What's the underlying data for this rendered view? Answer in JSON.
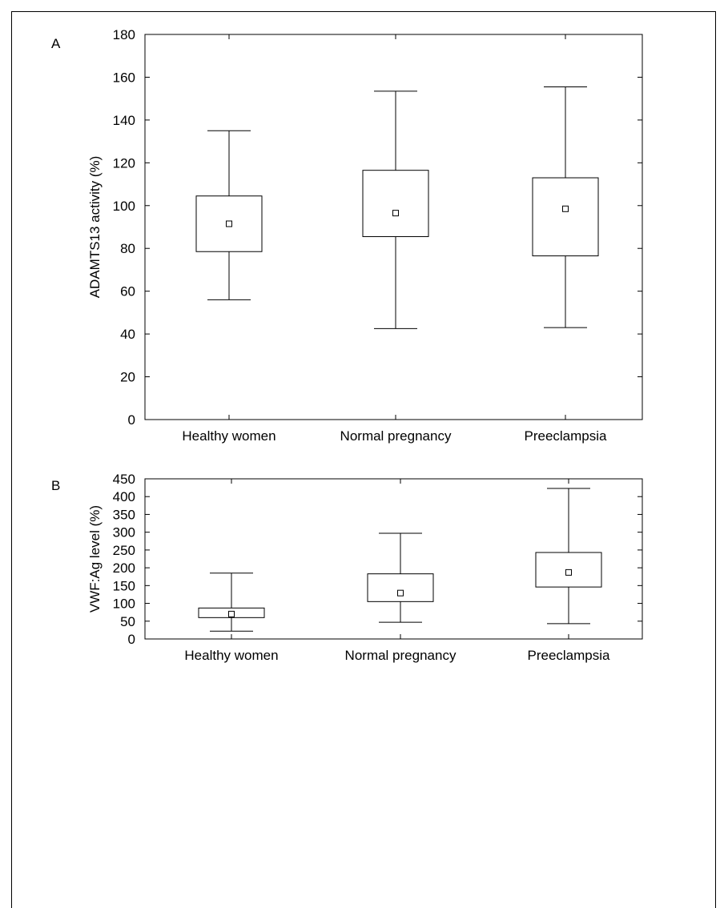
{
  "chart_data": [
    {
      "type": "box",
      "panel_label": "A",
      "ylabel": "ADAMTS13 activity (%)",
      "ylim": [
        0,
        180
      ],
      "yticks": [
        0,
        20,
        40,
        60,
        80,
        100,
        120,
        140,
        160,
        180
      ],
      "categories": [
        "Healthy women",
        "Normal pregnancy",
        "Preeclampsia"
      ],
      "boxes": [
        {
          "whisker_low": 56,
          "q1": 78.5,
          "median": 91.5,
          "q3": 104.5,
          "whisker_high": 135
        },
        {
          "whisker_low": 42.5,
          "q1": 85.5,
          "median": 96.5,
          "q3": 116.5,
          "whisker_high": 153.5
        },
        {
          "whisker_low": 43,
          "q1": 76.5,
          "median": 98.5,
          "q3": 113,
          "whisker_high": 155.5
        }
      ]
    },
    {
      "type": "box",
      "panel_label": "B",
      "ylabel": "VWF:Ag level (%)",
      "ylim": [
        0,
        450
      ],
      "yticks": [
        0,
        50,
        100,
        150,
        200,
        250,
        300,
        350,
        400,
        450
      ],
      "categories": [
        "Healthy women",
        "Normal pregnancy",
        "Preeclampsia"
      ],
      "boxes": [
        {
          "whisker_low": 22,
          "q1": 60,
          "median": 70,
          "q3": 87,
          "whisker_high": 185
        },
        {
          "whisker_low": 47,
          "q1": 105,
          "median": 129,
          "q3": 183,
          "whisker_high": 297
        },
        {
          "whisker_low": 43,
          "q1": 146,
          "median": 187,
          "q3": 243,
          "whisker_high": 423
        }
      ]
    }
  ]
}
